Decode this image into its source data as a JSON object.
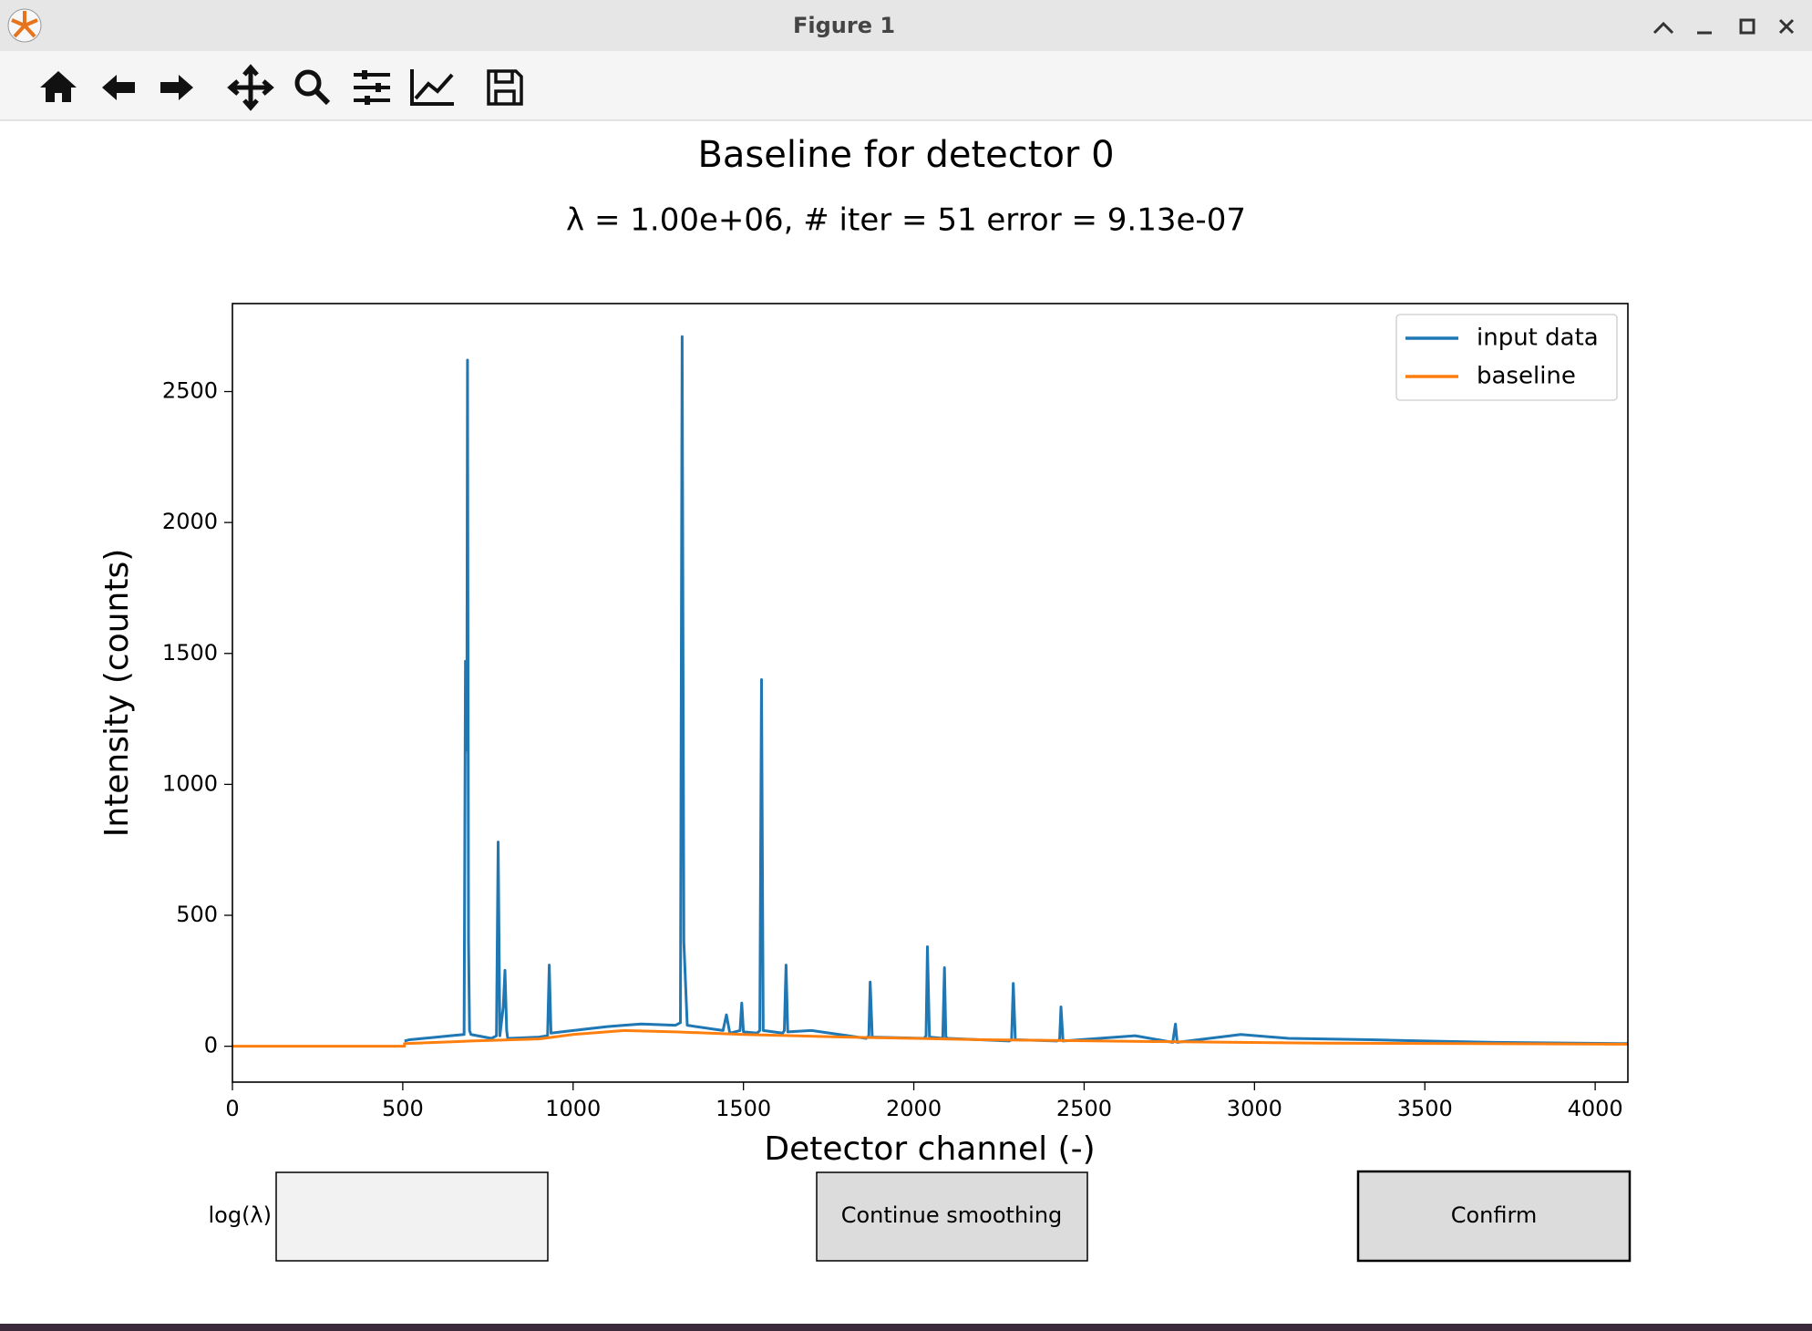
{
  "window": {
    "title": "Figure 1"
  },
  "chart_data": {
    "type": "line",
    "title": "Baseline for detector 0",
    "subtitle": "λ = 1.00e+06, # iter = 51 error = 9.13e-07",
    "xlabel": "Detector channel (-)",
    "ylabel": "Intensity (counts)",
    "xlim": [
      0,
      4096
    ],
    "ylim": [
      -137,
      2836
    ],
    "xticks": [
      0,
      500,
      1000,
      1500,
      2000,
      2500,
      3000,
      3500,
      4000
    ],
    "yticks": [
      0,
      500,
      1000,
      1500,
      2000,
      2500
    ],
    "legend": "upper right",
    "grid": false,
    "series": [
      {
        "name": "input data",
        "color": "#1f77b4",
        "x": [
          505,
          520,
          600,
          640,
          680,
          684,
          688,
          690,
          693,
          696,
          700,
          760,
          775,
          780,
          785,
          795,
          800,
          805,
          808,
          812,
          900,
          925,
          930,
          935,
          1000,
          1100,
          1150,
          1200,
          1300,
          1315,
          1320,
          1325,
          1335,
          1440,
          1450,
          1460,
          1490,
          1495,
          1500,
          1540,
          1548,
          1553,
          1558,
          1615,
          1620,
          1625,
          1630,
          1700,
          1860,
          1868,
          1872,
          1878,
          2030,
          2036,
          2040,
          2046,
          2085,
          2090,
          2094,
          2100,
          2280,
          2287,
          2292,
          2298,
          2420,
          2428,
          2432,
          2438,
          2650,
          2760,
          2768,
          2773,
          2960,
          3100,
          3340,
          3500,
          3700,
          4096
        ],
        "values": [
          20,
          25,
          35,
          40,
          45,
          1470,
          1130,
          2620,
          400,
          60,
          45,
          30,
          40,
          780,
          40,
          150,
          290,
          60,
          30,
          30,
          35,
          40,
          310,
          50,
          60,
          75,
          80,
          85,
          80,
          90,
          2710,
          400,
          80,
          60,
          120,
          50,
          60,
          165,
          55,
          50,
          60,
          1400,
          60,
          50,
          60,
          310,
          55,
          60,
          30,
          40,
          245,
          35,
          30,
          40,
          380,
          35,
          30,
          300,
          35,
          30,
          20,
          25,
          240,
          25,
          20,
          25,
          150,
          20,
          40,
          15,
          85,
          15,
          45,
          30,
          25,
          20,
          15,
          10
        ]
      },
      {
        "name": "baseline",
        "color": "#ff7f0e",
        "x": [
          0,
          505,
          505,
          700,
          900,
          1000,
          1150,
          1300,
          1500,
          1800,
          2200,
          2700,
          3200,
          4096
        ],
        "values": [
          0,
          0,
          10,
          20,
          28,
          45,
          60,
          55,
          45,
          35,
          25,
          18,
          12,
          8
        ]
      }
    ]
  },
  "widgets": {
    "textbox_label": "log(λ)",
    "continue_button": "Continue smoothing",
    "confirm_button": "Confirm"
  }
}
